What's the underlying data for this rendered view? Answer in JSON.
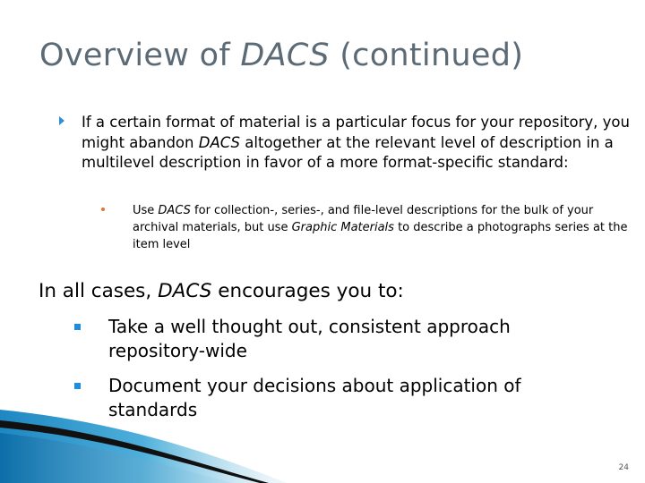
{
  "title": {
    "part1": "Overview of ",
    "em": "DACS",
    "part2": " (continued)"
  },
  "bullet1": {
    "t1": "If a certain format of material is a particular focus for your repository, you might abandon ",
    "em": "DACS",
    "t2": " altogether at the relevant level of description in a multilevel description in favor of a more format-specific standard:"
  },
  "subbullet1": {
    "t1": "Use ",
    "em1": "DACS",
    "t2": " for collection-, series-, and file-level descriptions for the bulk of your archival materials, but use ",
    "em2": "Graphic Materials",
    "t3": " to describe a photographs series at the item level"
  },
  "section": {
    "t1": "In all cases, ",
    "em": "DACS",
    "t2": " encourages you to:"
  },
  "items": [
    "Take a well thought out, consistent approach repository-wide",
    "Document your decisions about application of standards"
  ],
  "page_number": "24",
  "colors": {
    "title": "#5b6a75",
    "accent_blue": "#1f8dde",
    "sub_bullet": "#e8732a",
    "wave_dark": "#111111"
  }
}
